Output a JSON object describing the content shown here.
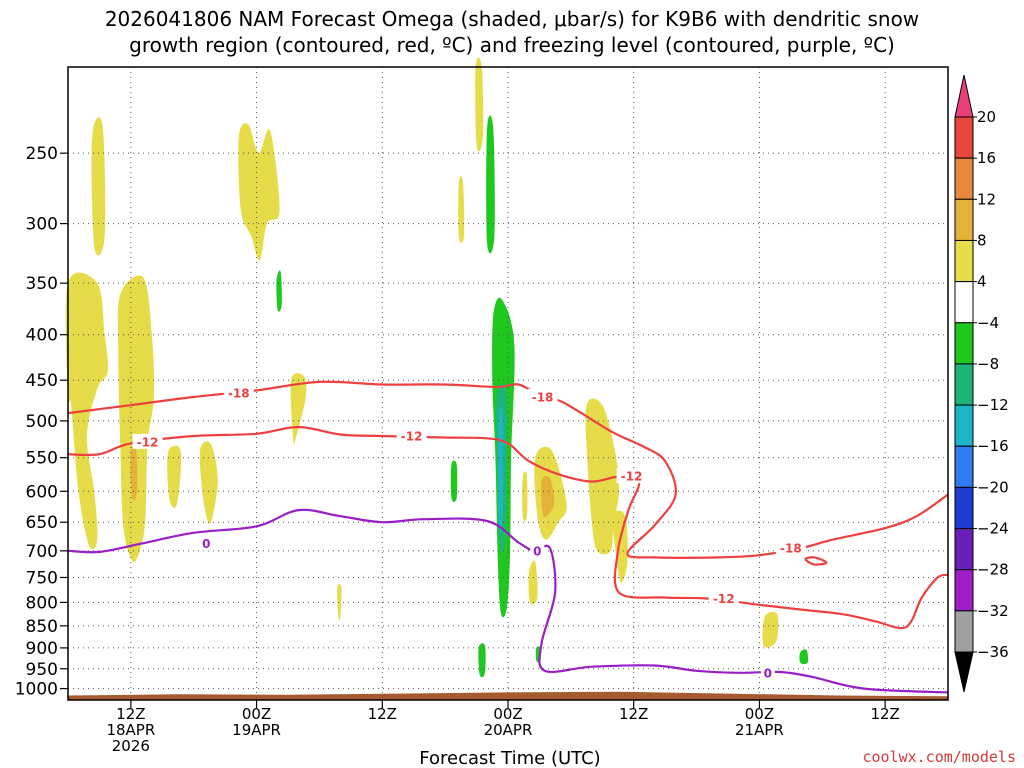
{
  "chart_data": {
    "type": "heatmap",
    "title_lines": [
      "2026041806 NAM Forecast Omega (shaded, μbar/s) for K9B6 with dendritic snow",
      "growth region (contoured, red, ºC) and freezing level (contoured, purple, ºC)"
    ],
    "xlabel": "Forecast Time (UTC)",
    "credit": "coolwx.com/models",
    "x_range_hours": [
      6,
      90
    ],
    "y_axis": {
      "scale": "log-pressure",
      "range_hPa": [
        200,
        1030
      ],
      "ticks": [
        250,
        300,
        350,
        400,
        450,
        500,
        550,
        600,
        650,
        700,
        750,
        800,
        850,
        900,
        950,
        1000
      ]
    },
    "x_ticks": [
      {
        "hour": 12,
        "lines": [
          "12Z",
          "18APR",
          "2026"
        ]
      },
      {
        "hour": 24,
        "lines": [
          "00Z",
          "19APR"
        ]
      },
      {
        "hour": 36,
        "lines": [
          "12Z"
        ]
      },
      {
        "hour": 48,
        "lines": [
          "00Z",
          "20APR"
        ]
      },
      {
        "hour": 60,
        "lines": [
          "12Z"
        ]
      },
      {
        "hour": 72,
        "lines": [
          "00Z",
          "21APR"
        ]
      },
      {
        "hour": 84,
        "lines": [
          "12Z"
        ]
      }
    ],
    "colorbar": {
      "labels": [
        "20",
        "16",
        "12",
        "8",
        "4",
        "−4",
        "−8",
        "−12",
        "−16",
        "−20",
        "−24",
        "−28",
        "−32",
        "−36"
      ],
      "colors": [
        "#e8417a",
        "#e8473a",
        "#e9873a",
        "#e4b23a",
        "#e6dc4a",
        "#ffffff",
        "#1ec81e",
        "#1eb478",
        "#1eb4c8",
        "#2e7cf0",
        "#1e3cd2",
        "#6a1eb8",
        "#a01ec8",
        "#a0a0a0",
        "#000000"
      ]
    },
    "omega_regions": [
      {
        "color": "#e6dc4a",
        "points": [
          [
            8.3,
            240
          ],
          [
            9.3,
            233
          ],
          [
            9.5,
            310
          ],
          [
            8.5,
            318
          ]
        ]
      },
      {
        "color": "#e6dc4a",
        "points": [
          [
            22.3,
            240
          ],
          [
            23.2,
            232
          ],
          [
            24.2,
            250
          ],
          [
            25.3,
            236
          ],
          [
            26.2,
            290
          ],
          [
            25.0,
            300
          ],
          [
            24.3,
            330
          ],
          [
            23.5,
            310
          ],
          [
            22.5,
            290
          ]
        ]
      },
      {
        "color": "#e6dc4a",
        "points": [
          [
            6.0,
            350
          ],
          [
            8.8,
            350
          ],
          [
            9.5,
            400
          ],
          [
            9.8,
            440
          ],
          [
            8.8,
            460
          ],
          [
            7.8,
            520
          ],
          [
            8.5,
            600
          ],
          [
            8.8,
            680
          ],
          [
            8.0,
            690
          ],
          [
            7.0,
            600
          ],
          [
            6.3,
            480
          ],
          [
            6.0,
            470
          ]
        ]
      },
      {
        "color": "#e6dc4a",
        "points": [
          [
            11.0,
            360
          ],
          [
            13.2,
            345
          ],
          [
            14.0,
            400
          ],
          [
            14.2,
            470
          ],
          [
            13.6,
            530
          ],
          [
            13.4,
            640
          ],
          [
            13.0,
            690
          ],
          [
            12.2,
            720
          ],
          [
            11.3,
            660
          ],
          [
            11.0,
            540
          ],
          [
            10.8,
            420
          ]
        ]
      },
      {
        "color": "#e4b23a",
        "points": [
          [
            12.0,
            540
          ],
          [
            12.5,
            540
          ],
          [
            12.6,
            600
          ],
          [
            12.1,
            610
          ]
        ]
      },
      {
        "color": "#e6dc4a",
        "points": [
          [
            15.6,
            540
          ],
          [
            16.6,
            535
          ],
          [
            16.8,
            560
          ],
          [
            16.4,
            620
          ],
          [
            15.8,
            620
          ],
          [
            15.5,
            580
          ]
        ]
      },
      {
        "color": "#e6dc4a",
        "points": [
          [
            18.6,
            540
          ],
          [
            19.6,
            530
          ],
          [
            20.3,
            580
          ],
          [
            19.8,
            640
          ],
          [
            19.4,
            650
          ],
          [
            18.9,
            610
          ]
        ]
      },
      {
        "color": "#e6dc4a",
        "points": [
          [
            27.3,
            450
          ],
          [
            28.5,
            445
          ],
          [
            28.7,
            470
          ],
          [
            27.8,
            520
          ],
          [
            27.5,
            525
          ]
        ]
      },
      {
        "color": "#e6dc4a",
        "points": [
          [
            43.3,
            270
          ],
          [
            43.7,
            270
          ],
          [
            43.8,
            310
          ],
          [
            43.3,
            310
          ]
        ]
      },
      {
        "color": "#e6dc4a",
        "points": [
          [
            44.9,
            200
          ],
          [
            45.5,
            200
          ],
          [
            45.6,
            240
          ],
          [
            45.0,
            245
          ]
        ]
      },
      {
        "color": "#1ec81e",
        "points": [
          [
            46.0,
            235
          ],
          [
            46.6,
            235
          ],
          [
            46.7,
            310
          ],
          [
            46.0,
            315
          ]
        ]
      },
      {
        "color": "#1ec81e",
        "points": [
          [
            25.9,
            347
          ],
          [
            26.3,
            340
          ],
          [
            26.4,
            370
          ],
          [
            26.0,
            375
          ]
        ]
      },
      {
        "color": "#1ec81e",
        "points": [
          [
            46.6,
            380
          ],
          [
            47.4,
            365
          ],
          [
            48.6,
            410
          ],
          [
            48.3,
            550
          ],
          [
            48.2,
            700
          ],
          [
            47.9,
            810
          ],
          [
            47.3,
            820
          ],
          [
            47.0,
            700
          ],
          [
            46.8,
            550
          ],
          [
            46.5,
            450
          ]
        ]
      },
      {
        "color": "#1eb478",
        "points": [
          [
            46.9,
            470
          ],
          [
            47.8,
            460
          ],
          [
            47.9,
            540
          ],
          [
            47.7,
            680
          ],
          [
            47.2,
            690
          ],
          [
            47.0,
            560
          ]
        ]
      },
      {
        "color": "#1eb4c8",
        "points": [
          [
            47.1,
            500
          ],
          [
            47.5,
            495
          ],
          [
            47.5,
            640
          ],
          [
            47.1,
            650
          ]
        ]
      },
      {
        "color": "#1ec81e",
        "points": [
          [
            42.6,
            560
          ],
          [
            43.1,
            560
          ],
          [
            43.1,
            610
          ],
          [
            42.6,
            610
          ]
        ]
      },
      {
        "color": "#1ec81e",
        "points": [
          [
            45.2,
            900
          ],
          [
            45.8,
            895
          ],
          [
            45.8,
            960
          ],
          [
            45.3,
            965
          ]
        ]
      },
      {
        "color": "#1ec81e",
        "points": [
          [
            50.7,
            900
          ],
          [
            51.1,
            900
          ],
          [
            51.1,
            930
          ],
          [
            50.7,
            930
          ]
        ]
      },
      {
        "color": "#1ec81e",
        "points": [
          [
            75.9,
            910
          ],
          [
            76.5,
            905
          ],
          [
            76.6,
            935
          ],
          [
            75.9,
            935
          ]
        ]
      },
      {
        "color": "#e6dc4a",
        "points": [
          [
            49.4,
            580
          ],
          [
            49.8,
            575
          ],
          [
            49.8,
            640
          ],
          [
            49.4,
            640
          ]
        ]
      },
      {
        "color": "#e6dc4a",
        "points": [
          [
            50.6,
            550
          ],
          [
            52.2,
            540
          ],
          [
            53.6,
            620
          ],
          [
            52.8,
            650
          ],
          [
            51.6,
            680
          ],
          [
            50.8,
            640
          ]
        ]
      },
      {
        "color": "#e4b23a",
        "points": [
          [
            51.2,
            585
          ],
          [
            52.0,
            580
          ],
          [
            52.4,
            620
          ],
          [
            51.4,
            640
          ]
        ]
      },
      {
        "color": "#e6dc4a",
        "points": [
          [
            50.0,
            740
          ],
          [
            50.6,
            720
          ],
          [
            50.8,
            790
          ],
          [
            50.1,
            800
          ]
        ]
      },
      {
        "color": "#e6dc4a",
        "points": [
          [
            55.5,
            480
          ],
          [
            57.0,
            480
          ],
          [
            58.2,
            540
          ],
          [
            58.6,
            600
          ],
          [
            58.1,
            650
          ],
          [
            57.8,
            700
          ],
          [
            56.5,
            700
          ],
          [
            56.0,
            650
          ],
          [
            55.6,
            560
          ]
        ]
      },
      {
        "color": "#e6dc4a",
        "points": [
          [
            58.0,
            640
          ],
          [
            59.2,
            640
          ],
          [
            59.4,
            720
          ],
          [
            58.8,
            760
          ],
          [
            58.4,
            720
          ]
        ]
      },
      {
        "color": "#e6dc4a",
        "points": [
          [
            31.7,
            770
          ],
          [
            32.1,
            770
          ],
          [
            32.0,
            830
          ],
          [
            31.8,
            830
          ]
        ]
      },
      {
        "color": "#e6dc4a",
        "points": [
          [
            72.5,
            830
          ],
          [
            73.7,
            825
          ],
          [
            73.6,
            885
          ],
          [
            72.4,
            895
          ]
        ]
      }
    ],
    "contours": [
      {
        "name": "-18",
        "color": "#ef4040",
        "points": [
          [
            6,
            490
          ],
          [
            12,
            480
          ],
          [
            18,
            470
          ],
          [
            24,
            462
          ],
          [
            30,
            452
          ],
          [
            36,
            455
          ],
          [
            42,
            455
          ],
          [
            47,
            458
          ],
          [
            49,
            455
          ],
          [
            51,
            468
          ],
          [
            53,
            475
          ],
          [
            55,
            490
          ],
          [
            58,
            515
          ],
          [
            61,
            535
          ],
          [
            63,
            555
          ],
          [
            64,
            605
          ],
          [
            62,
            655
          ],
          [
            59.4,
            705
          ],
          [
            62,
            712
          ],
          [
            68,
            712
          ],
          [
            72,
            708
          ],
          [
            76,
            695
          ],
          [
            79,
            680
          ],
          [
            84,
            660
          ],
          [
            87,
            640
          ],
          [
            90,
            605
          ]
        ]
      },
      {
        "name": "-12",
        "color": "#ef4040",
        "points": [
          [
            6,
            545
          ],
          [
            9,
            545
          ],
          [
            12,
            530
          ],
          [
            18,
            520
          ],
          [
            24,
            517
          ],
          [
            28,
            508
          ],
          [
            32,
            518
          ],
          [
            36,
            520
          ],
          [
            42,
            522
          ],
          [
            46,
            523
          ],
          [
            48,
            530
          ],
          [
            50,
            555
          ],
          [
            53,
            575
          ],
          [
            56,
            585
          ],
          [
            58.5,
            578
          ],
          [
            60.5,
            585
          ],
          [
            59.5,
            630
          ],
          [
            58.5,
            700
          ],
          [
            58.6,
            780
          ],
          [
            63,
            790
          ],
          [
            67,
            792
          ],
          [
            72,
            805
          ],
          [
            76,
            815
          ],
          [
            80,
            825
          ],
          [
            83,
            840
          ],
          [
            85.5,
            855
          ],
          [
            86.5,
            840
          ],
          [
            87.5,
            790
          ],
          [
            89,
            750
          ],
          [
            90,
            745
          ]
        ]
      },
      {
        "name": "-18b",
        "color": "#ef4040",
        "points": [
          [
            76.4,
            715
          ],
          [
            77.3,
            712
          ],
          [
            78.4,
            722
          ],
          [
            77.2,
            725
          ],
          [
            76.4,
            715
          ]
        ]
      },
      {
        "name": "0",
        "color": "#9a1ec8",
        "points": [
          [
            6,
            700
          ],
          [
            9,
            702
          ],
          [
            13,
            687
          ],
          [
            18,
            668
          ],
          [
            24,
            657
          ],
          [
            28,
            630
          ],
          [
            32,
            640
          ],
          [
            36,
            650
          ],
          [
            40,
            645
          ],
          [
            46,
            648
          ],
          [
            49,
            685
          ],
          [
            50.5,
            700
          ],
          [
            52,
            695
          ],
          [
            52.5,
            780
          ],
          [
            51.2,
            890
          ],
          [
            51.5,
            955
          ],
          [
            56,
            945
          ],
          [
            62,
            942
          ],
          [
            66,
            955
          ],
          [
            70,
            960
          ],
          [
            74,
            958
          ],
          [
            77,
            970
          ],
          [
            82,
            1000
          ],
          [
            90,
            1010
          ]
        ]
      }
    ],
    "contour_labels": [
      {
        "text": "-18",
        "hour": 22.3,
        "p": 465,
        "color": "#ef4040"
      },
      {
        "text": "-18",
        "hour": 51.3,
        "p": 470,
        "color": "#ef4040"
      },
      {
        "text": "-18",
        "hour": 75.0,
        "p": 695,
        "color": "#ef4040"
      },
      {
        "text": "-12",
        "hour": 13.6,
        "p": 528,
        "color": "#ef4040"
      },
      {
        "text": "-12",
        "hour": 38.8,
        "p": 520,
        "color": "#ef4040"
      },
      {
        "text": "-12",
        "hour": 59.8,
        "p": 577,
        "color": "#ef4040"
      },
      {
        "text": "-12",
        "hour": 68.6,
        "p": 792,
        "color": "#ef4040"
      },
      {
        "text": "0",
        "hour": 19.2,
        "p": 687,
        "color": "#9a1ec8"
      },
      {
        "text": "0",
        "hour": 50.8,
        "p": 700,
        "color": "#9a1ec8"
      },
      {
        "text": "0",
        "hour": 72.8,
        "p": 960,
        "color": "#9a1ec8"
      }
    ],
    "ground": {
      "color": "#a65a30",
      "top_p": [
        1018,
        1015,
        1016,
        1013,
        1010,
        1008,
        1013,
        1018,
        1020
      ]
    }
  }
}
